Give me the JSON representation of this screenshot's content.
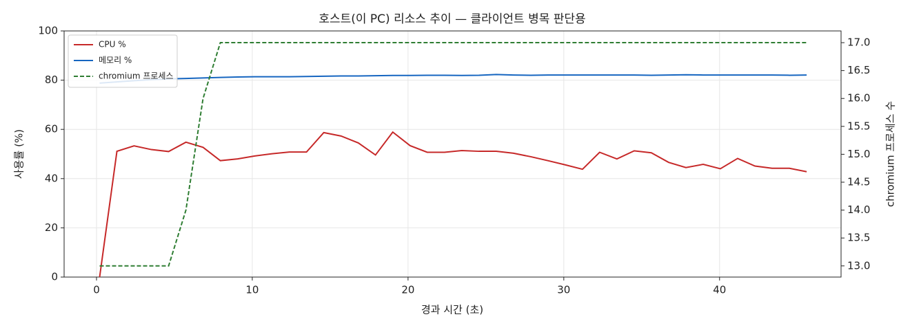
{
  "chart_data": {
    "type": "line",
    "title": "호스트(이 PC) 리소스 추이 — 클라이언트 병목 판단용",
    "x_label": "경과 시간 (초)",
    "y_label": "사용률 (%)",
    "y2_label": "chromium 프로세스 수",
    "x": [
      0.2,
      1.31,
      2.41,
      3.52,
      4.63,
      5.74,
      6.84,
      7.95,
      9.06,
      10.16,
      11.27,
      12.38,
      13.48,
      14.59,
      15.7,
      16.81,
      17.91,
      19.02,
      20.13,
      21.23,
      22.34,
      23.45,
      24.55,
      25.66,
      26.77,
      27.88,
      28.98,
      30.09,
      31.2,
      32.3,
      33.41,
      34.52,
      35.62,
      36.73,
      37.84,
      38.95,
      40.05,
      41.16,
      42.27,
      43.37,
      44.48,
      45.59
    ],
    "series": [
      {
        "name": "CPU %",
        "color": "#c62828",
        "axis": "y",
        "dash": false,
        "values": [
          0,
          51.1,
          53.3,
          51.8,
          51.0,
          54.8,
          52.7,
          47.3,
          48.0,
          49.2,
          50.1,
          50.8,
          50.8,
          58.7,
          57.3,
          54.5,
          49.6,
          58.9,
          53.4,
          50.7,
          50.7,
          51.4,
          51.1,
          51.1,
          50.3,
          48.9,
          47.3,
          45.6,
          43.8,
          50.7,
          48.0,
          51.3,
          50.5,
          46.6,
          44.5,
          45.8,
          44.0,
          48.2,
          45.1,
          44.2,
          44.2,
          42.8
        ]
      },
      {
        "name": "메모리 %",
        "color": "#1565c0",
        "axis": "y",
        "dash": false,
        "values": [
          78.8,
          79.3,
          79.8,
          80.2,
          80.5,
          80.7,
          80.9,
          81.1,
          81.3,
          81.4,
          81.4,
          81.4,
          81.5,
          81.6,
          81.7,
          81.7,
          81.8,
          81.9,
          81.9,
          82.0,
          82.0,
          81.9,
          82.0,
          82.3,
          82.1,
          82.0,
          82.1,
          82.1,
          82.1,
          82.1,
          82.1,
          82.1,
          82.0,
          82.1,
          82.2,
          82.1,
          82.1,
          82.1,
          82.1,
          82.1,
          82.0,
          82.1
        ]
      },
      {
        "name": "chromium 프로세스",
        "color": "#2e7d32",
        "axis": "y2",
        "dash": true,
        "values": [
          13,
          13,
          13,
          13,
          13,
          14,
          16,
          17,
          17,
          17,
          17,
          17,
          17,
          17,
          17,
          17,
          17,
          17,
          17,
          17,
          17,
          17,
          17,
          17,
          17,
          17,
          17,
          17,
          17,
          17,
          17,
          17,
          17,
          17,
          17,
          17,
          17,
          17,
          17,
          17,
          17,
          17
        ]
      }
    ],
    "xlim": [
      -2.08,
      47.8
    ],
    "xticks": [
      0,
      10,
      20,
      30,
      40
    ],
    "ylim": [
      0,
      100
    ],
    "yticks": [
      0,
      20,
      40,
      60,
      80,
      100
    ],
    "y2lim": [
      12.8,
      17.21
    ],
    "y2ticks": [
      {
        "value": 13,
        "label": "13.0"
      },
      13.5,
      {
        "value": 14,
        "label": "14.0"
      },
      14.5,
      {
        "value": 15,
        "label": "15.0"
      },
      15.5,
      {
        "value": 16,
        "label": "16.0"
      },
      16.5,
      {
        "value": 17,
        "label": "17.0"
      }
    ],
    "grid": true,
    "legend": "upper-left"
  }
}
